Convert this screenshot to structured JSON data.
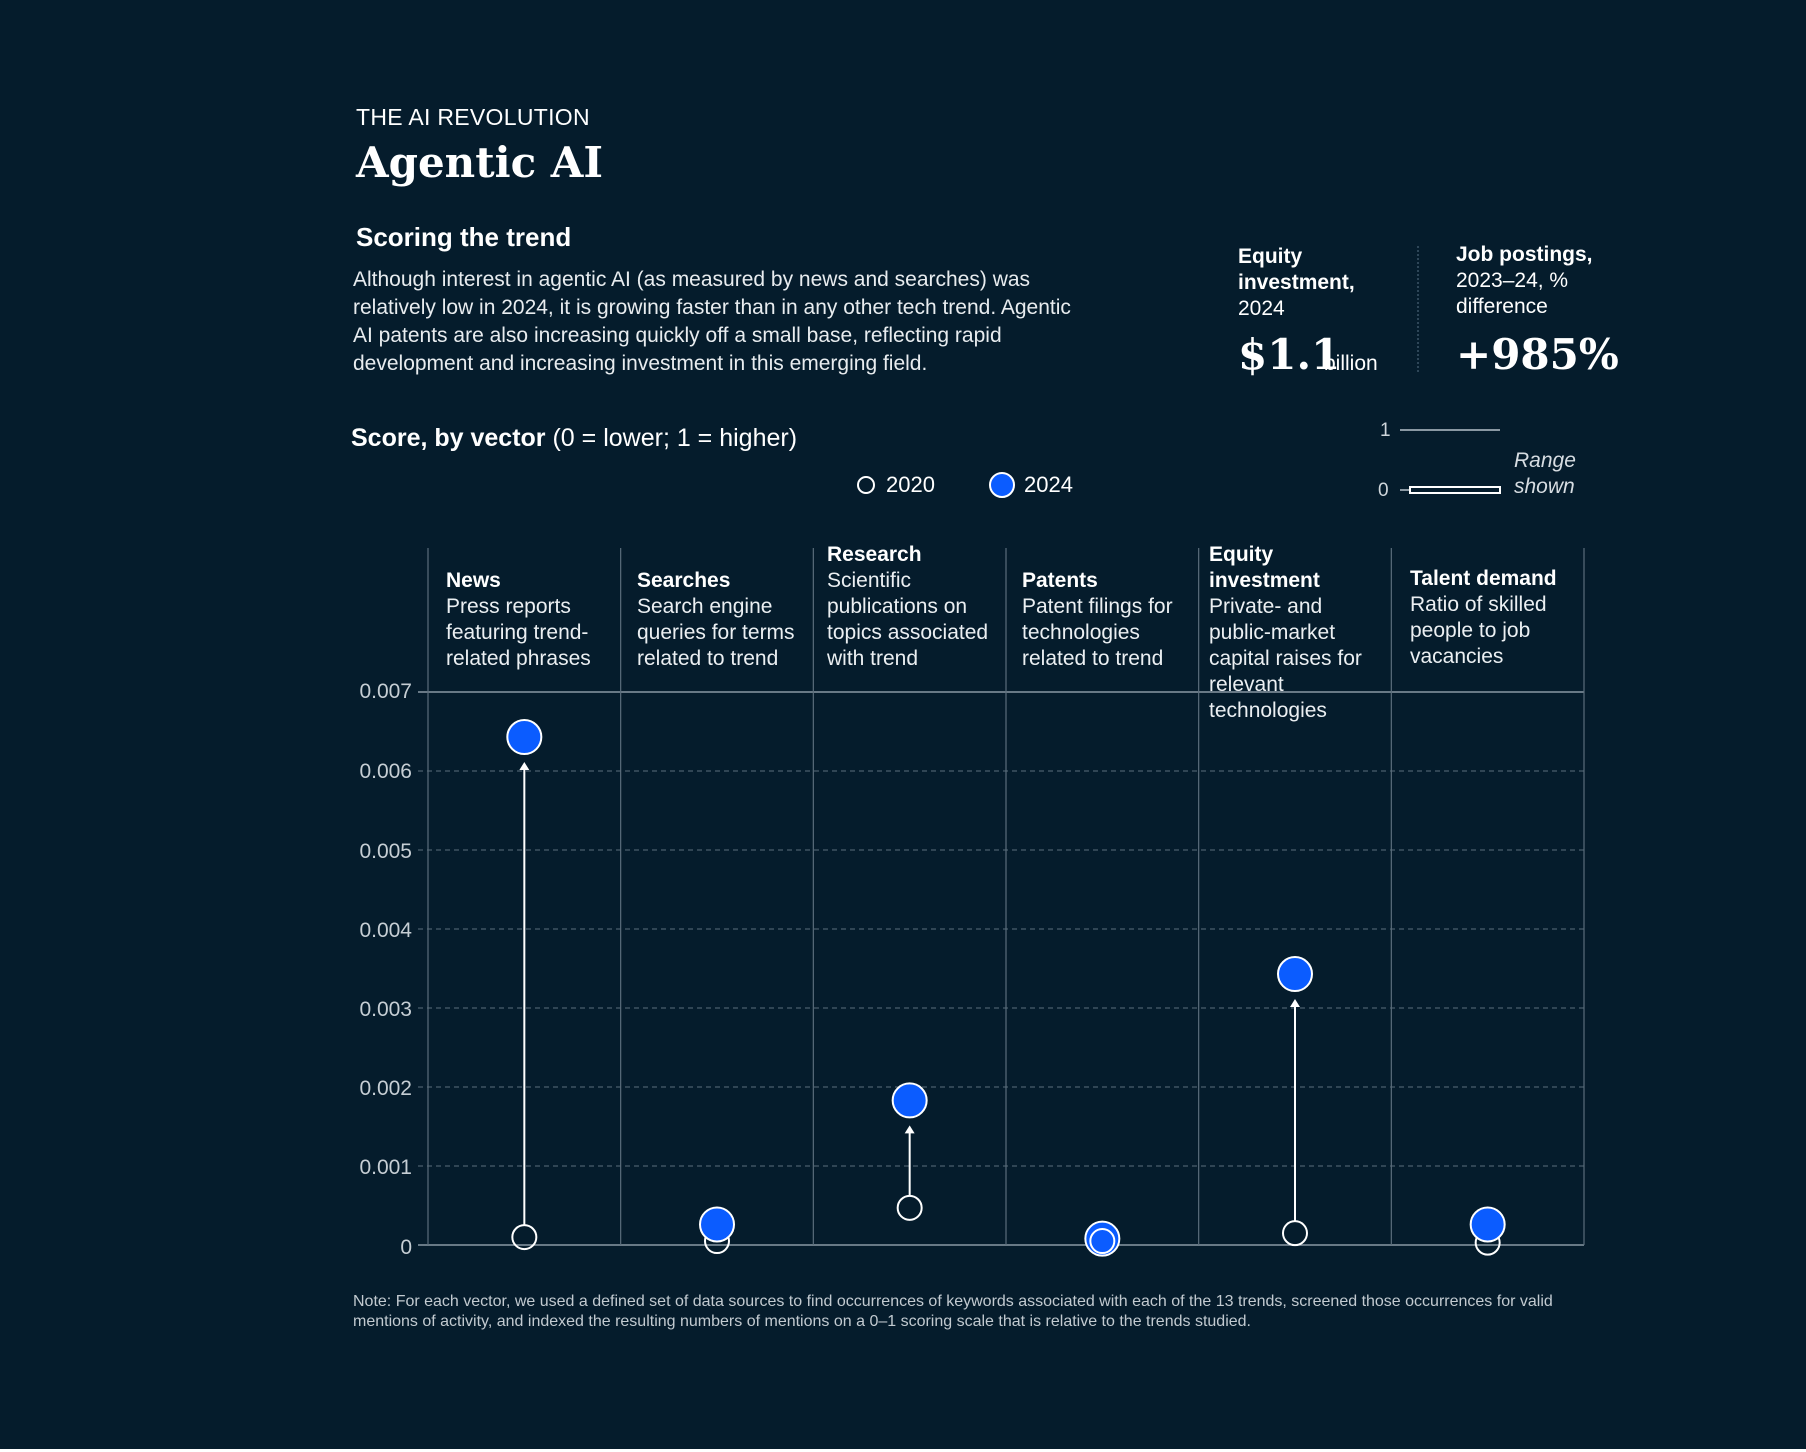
{
  "header": {
    "eyebrow": "THE AI REVOLUTION",
    "title": "Agentic AI",
    "section_title": "Scoring the trend",
    "description": "Although interest in agentic AI (as measured by news and searches) was relatively low in 2024, it is growing faster than in any other tech trend. Agentic AI patents are also increasing quickly off a small base, reflecting rapid development and increasing investment in this emerging field."
  },
  "kpis": {
    "equity": {
      "label_bold": "Equity investment,",
      "label_rest": "2024",
      "value": "$1.1",
      "unit": "billion"
    },
    "jobs": {
      "label_bold": "Job postings,",
      "label_rest": "2023–24, % difference",
      "value": "+985%"
    }
  },
  "score_title": {
    "bold": "Score, by vector",
    "rest": " (0 = lower; 1 = higher)"
  },
  "legend": {
    "year_2020": "2020",
    "year_2024": "2024"
  },
  "range_inset": {
    "tick_top": "1",
    "tick_bottom": "0",
    "label": "Range shown"
  },
  "note": "Note: For each vector, we used a defined set of data sources to find occurrences of keywords associated with each of the 13 trends, screened those occurrences for valid mentions of activity, and indexed the resulting numbers of mentions on a 0–1 scoring scale that is relative to the trends studied.",
  "colors": {
    "background": "#051c2c",
    "dot_2024": "#0b5cff",
    "gridline": "#5b6d7b",
    "text": "#ffffff"
  },
  "chart_data": {
    "type": "scatter",
    "ylim": [
      0,
      0.007
    ],
    "grid": true,
    "y_ticks": [
      "0",
      "0.001",
      "0.002",
      "0.003",
      "0.004",
      "0.005",
      "0.006",
      "0.007"
    ],
    "categories": [
      {
        "name": "News",
        "description": "Press reports featuring trend-related phrases"
      },
      {
        "name": "Searches",
        "description": "Search engine queries for terms related to trend"
      },
      {
        "name": "Research",
        "description": "Scientific publications on topics associated with trend"
      },
      {
        "name": "Patents",
        "description": "Patent filings for technologies related to trend"
      },
      {
        "name": "Equity investment",
        "description": "Private- and public-market capital raises for relevant technologies"
      },
      {
        "name": "Talent demand",
        "description": "Ratio of skilled people to job vacancies"
      }
    ],
    "series": [
      {
        "name": "2020",
        "values": [
          0.0001,
          5e-05,
          0.00047,
          5e-05,
          0.00015,
          3e-05
        ]
      },
      {
        "name": "2024",
        "values": [
          0.00643,
          0.00026,
          0.00183,
          8e-05,
          0.00343,
          0.00026
        ]
      }
    ]
  }
}
